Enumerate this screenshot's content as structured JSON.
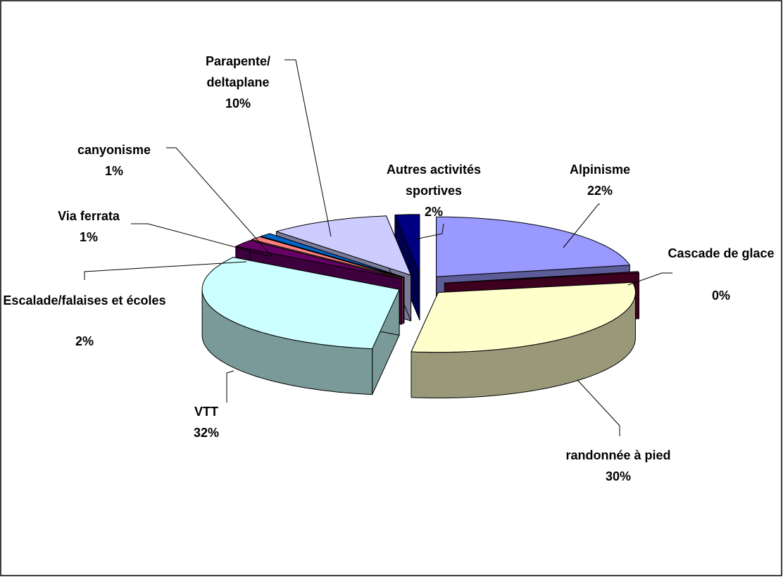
{
  "chart_data": {
    "type": "pie3d",
    "categories": [
      "Alpinisme",
      "Cascade de glace",
      "randonnée à pied",
      "VTT",
      "Escalade/falaises et écoles",
      "Via ferrata",
      "canyonisme",
      "Parapente/ deltaplane",
      "Autres activités sportives"
    ],
    "values": [
      22,
      0.4,
      30,
      32,
      2,
      1,
      1,
      10,
      2
    ],
    "value_labels": [
      "22%",
      "0%",
      "30%",
      "32%",
      "2%",
      "1%",
      "1%",
      "10%",
      "2%"
    ],
    "colors": [
      "#9999ff",
      "#660033",
      "#ffffcc",
      "#ccffff",
      "#660066",
      "#ff8080",
      "#0066cc",
      "#ccccff",
      "#000080"
    ]
  }
}
